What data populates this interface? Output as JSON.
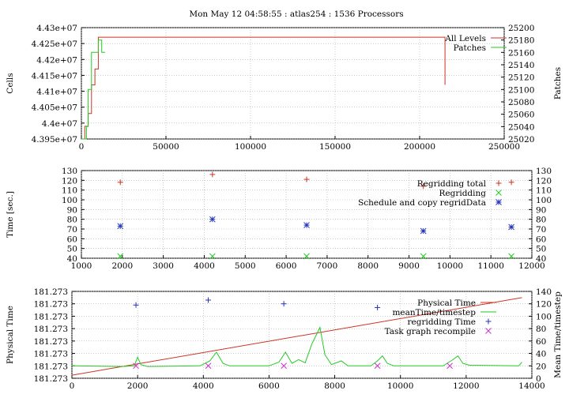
{
  "title": "Mon May 12 04:58:55 : atlas254 : 1536 Processors",
  "colors": {
    "red": "#cc3322",
    "green": "#22cc22",
    "blue": "#2233bb",
    "magenta": "#cc33cc",
    "grid": "#aaaaaa"
  },
  "chart_data": [
    {
      "type": "line",
      "ylabel": "Cells",
      "y2label": "Patches",
      "xlim": [
        0,
        250000
      ],
      "ylim": [
        43950000,
        44300000
      ],
      "y2lim": [
        25020,
        25200
      ],
      "xticks": [
        0,
        50000,
        100000,
        150000,
        200000,
        250000
      ],
      "yticks": [
        {
          "v": 43950000,
          "l": "4.395e+07"
        },
        {
          "v": 44000000,
          "l": "4.4e+07"
        },
        {
          "v": 44050000,
          "l": "4.405e+07"
        },
        {
          "v": 44100000,
          "l": "4.41e+07"
        },
        {
          "v": 44150000,
          "l": "4.415e+07"
        },
        {
          "v": 44200000,
          "l": "4.42e+07"
        },
        {
          "v": 44250000,
          "l": "4.425e+07"
        },
        {
          "v": 44300000,
          "l": "4.43e+07"
        }
      ],
      "y2ticks": [
        25020,
        25040,
        25060,
        25080,
        25100,
        25120,
        25140,
        25160,
        25180,
        25200
      ],
      "series": [
        {
          "name": "All Levels",
          "color": "red",
          "axis": "y",
          "points": [
            [
              0,
              43950000
            ],
            [
              2000,
              43950000
            ],
            [
              2000,
              43990000
            ],
            [
              4000,
              43990000
            ],
            [
              4000,
              44030000
            ],
            [
              6000,
              44030000
            ],
            [
              6000,
              44120000
            ],
            [
              8000,
              44120000
            ],
            [
              8000,
              44170000
            ],
            [
              10000,
              44170000
            ],
            [
              10000,
              44270000
            ],
            [
              215000,
              44270000
            ],
            [
              215000,
              44120000
            ]
          ]
        },
        {
          "name": "Patches",
          "color": "green",
          "axis": "y2",
          "points": [
            [
              0,
              25020
            ],
            [
              3000,
              25020
            ],
            [
              3000,
              25040
            ],
            [
              4000,
              25040
            ],
            [
              4000,
              25100
            ],
            [
              6000,
              25100
            ],
            [
              6000,
              25160
            ],
            [
              10000,
              25160
            ],
            [
              10000,
              25180
            ],
            [
              12000,
              25180
            ],
            [
              12000,
              25160
            ],
            [
              14000,
              25160
            ]
          ]
        }
      ]
    },
    {
      "type": "scatter",
      "ylabel": "Time [sec.]",
      "xlim": [
        1000,
        12000
      ],
      "ylim": [
        40,
        130
      ],
      "y2lim": [
        40,
        130
      ],
      "xticks": [
        1000,
        2000,
        3000,
        4000,
        5000,
        6000,
        7000,
        8000,
        9000,
        10000,
        11000,
        12000
      ],
      "yticks": [
        40,
        50,
        60,
        70,
        80,
        90,
        100,
        110,
        120,
        130
      ],
      "series": [
        {
          "name": "Regridding total",
          "color": "red",
          "marker": "plus",
          "x": [
            1950,
            4200,
            6500,
            9350,
            11500
          ],
          "y": [
            118,
            126,
            121,
            114,
            118
          ]
        },
        {
          "name": "Regridding",
          "color": "green",
          "marker": "cross",
          "x": [
            1950,
            4200,
            6500,
            9350,
            11500
          ],
          "y": [
            42,
            42,
            42,
            42,
            42
          ]
        },
        {
          "name": "Schedule and copy regridData",
          "color": "blue",
          "marker": "star",
          "x": [
            1950,
            4200,
            6500,
            9350,
            11500
          ],
          "y": [
            73,
            80,
            74,
            68,
            72
          ]
        }
      ]
    },
    {
      "type": "line",
      "ylabel": "Physical Time",
      "y2label": "Mean Time/timestep",
      "xlim": [
        0,
        14000
      ],
      "ylim": [
        0,
        140
      ],
      "y2lim": [
        0,
        140
      ],
      "xticks": [
        0,
        2000,
        4000,
        6000,
        8000,
        10000,
        12000,
        14000
      ],
      "yticks": [
        {
          "v": 0,
          "l": "181.273"
        },
        {
          "v": 20,
          "l": "181.273"
        },
        {
          "v": 40,
          "l": "181.273"
        },
        {
          "v": 60,
          "l": "181.273"
        },
        {
          "v": 80,
          "l": "181.273"
        },
        {
          "v": 100,
          "l": "181.273"
        },
        {
          "v": 120,
          "l": "181.273"
        },
        {
          "v": 140,
          "l": "181.273"
        }
      ],
      "y2ticks": [
        0,
        20,
        40,
        60,
        80,
        100,
        120,
        140
      ],
      "series": [
        {
          "name": "Physical Time",
          "color": "red",
          "type": "line",
          "points": [
            [
              0,
              5
            ],
            [
              13700,
              130
            ]
          ]
        },
        {
          "name": "meanTime/timestep",
          "color": "green",
          "type": "line",
          "points": [
            [
              0,
              20
            ],
            [
              1500,
              19
            ],
            [
              1900,
              20
            ],
            [
              2000,
              34
            ],
            [
              2100,
              22
            ],
            [
              2300,
              19
            ],
            [
              3900,
              20
            ],
            [
              4200,
              28
            ],
            [
              4400,
              42
            ],
            [
              4600,
              24
            ],
            [
              4800,
              20
            ],
            [
              6000,
              20
            ],
            [
              6300,
              26
            ],
            [
              6500,
              42
            ],
            [
              6700,
              24
            ],
            [
              6900,
              30
            ],
            [
              7100,
              25
            ],
            [
              7300,
              55
            ],
            [
              7550,
              82
            ],
            [
              7700,
              38
            ],
            [
              7900,
              22
            ],
            [
              8200,
              28
            ],
            [
              8400,
              20
            ],
            [
              9100,
              20
            ],
            [
              9300,
              28
            ],
            [
              9450,
              36
            ],
            [
              9600,
              24
            ],
            [
              9800,
              20
            ],
            [
              11300,
              20
            ],
            [
              11600,
              30
            ],
            [
              11750,
              36
            ],
            [
              11900,
              24
            ],
            [
              12100,
              21
            ],
            [
              13600,
              20
            ],
            [
              13700,
              26
            ]
          ]
        },
        {
          "name": "regridding Time",
          "color": "blue",
          "marker": "plus",
          "x": [
            1950,
            4150,
            6450,
            9300
          ],
          "y": [
            118,
            126,
            120,
            114
          ]
        },
        {
          "name": "Task graph recompile",
          "color": "magenta",
          "marker": "cross",
          "x": [
            1950,
            4150,
            6450,
            9300,
            11500
          ],
          "y": [
            20,
            20,
            20,
            20,
            20
          ]
        }
      ]
    }
  ]
}
